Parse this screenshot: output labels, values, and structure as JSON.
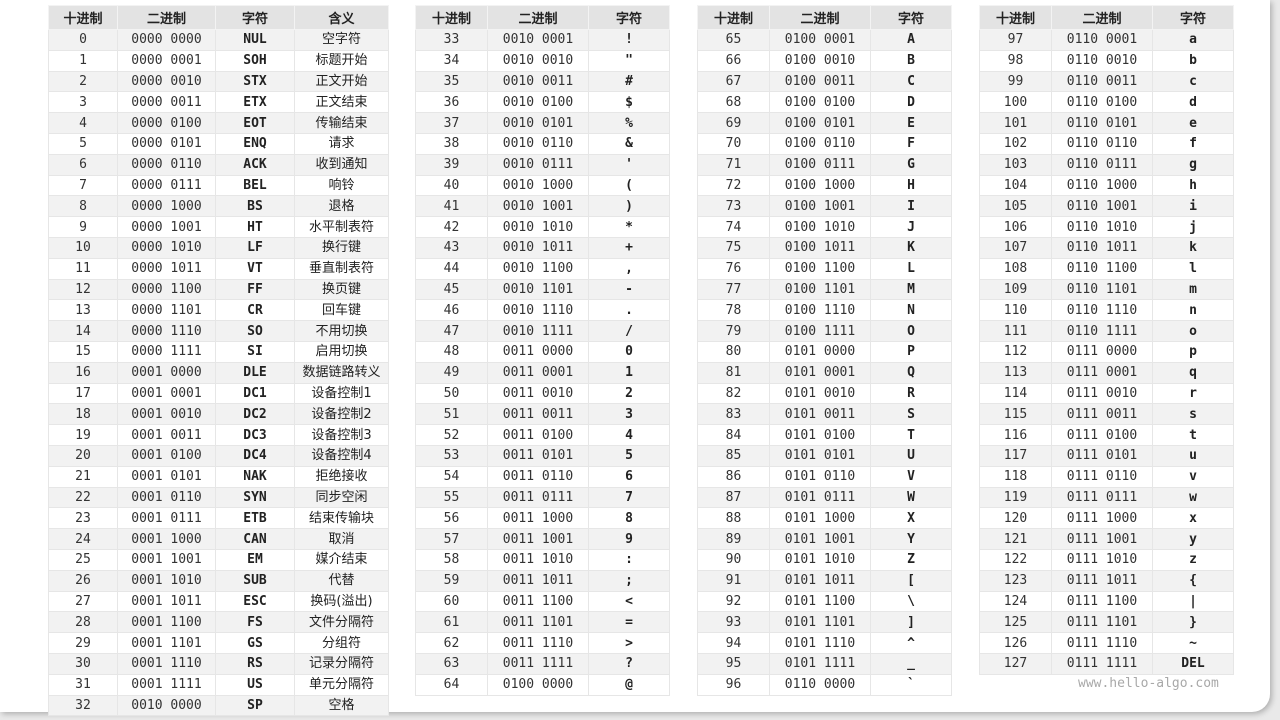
{
  "headers": {
    "dec": "十进制",
    "bin": "二进制",
    "char": "字符",
    "meaning": "含义"
  },
  "watermark": "www.hello-algo.com",
  "tables": [
    {
      "has_meaning": true,
      "rows": [
        [
          "0",
          "0000 0000",
          "NUL",
          "空字符"
        ],
        [
          "1",
          "0000 0001",
          "SOH",
          "标题开始"
        ],
        [
          "2",
          "0000 0010",
          "STX",
          "正文开始"
        ],
        [
          "3",
          "0000 0011",
          "ETX",
          "正文结束"
        ],
        [
          "4",
          "0000 0100",
          "EOT",
          "传输结束"
        ],
        [
          "5",
          "0000 0101",
          "ENQ",
          "请求"
        ],
        [
          "6",
          "0000 0110",
          "ACK",
          "收到通知"
        ],
        [
          "7",
          "0000 0111",
          "BEL",
          "响铃"
        ],
        [
          "8",
          "0000 1000",
          "BS",
          "退格"
        ],
        [
          "9",
          "0000 1001",
          "HT",
          "水平制表符"
        ],
        [
          "10",
          "0000 1010",
          "LF",
          "换行键"
        ],
        [
          "11",
          "0000 1011",
          "VT",
          "垂直制表符"
        ],
        [
          "12",
          "0000 1100",
          "FF",
          "换页键"
        ],
        [
          "13",
          "0000 1101",
          "CR",
          "回车键"
        ],
        [
          "14",
          "0000 1110",
          "SO",
          "不用切换"
        ],
        [
          "15",
          "0000 1111",
          "SI",
          "启用切换"
        ],
        [
          "16",
          "0001 0000",
          "DLE",
          "数据链路转义"
        ],
        [
          "17",
          "0001 0001",
          "DC1",
          "设备控制1"
        ],
        [
          "18",
          "0001 0010",
          "DC2",
          "设备控制2"
        ],
        [
          "19",
          "0001 0011",
          "DC3",
          "设备控制3"
        ],
        [
          "20",
          "0001 0100",
          "DC4",
          "设备控制4"
        ],
        [
          "21",
          "0001 0101",
          "NAK",
          "拒绝接收"
        ],
        [
          "22",
          "0001 0110",
          "SYN",
          "同步空闲"
        ],
        [
          "23",
          "0001 0111",
          "ETB",
          "结束传输块"
        ],
        [
          "24",
          "0001 1000",
          "CAN",
          "取消"
        ],
        [
          "25",
          "0001 1001",
          "EM",
          "媒介结束"
        ],
        [
          "26",
          "0001 1010",
          "SUB",
          "代替"
        ],
        [
          "27",
          "0001 1011",
          "ESC",
          "换码(溢出)"
        ],
        [
          "28",
          "0001 1100",
          "FS",
          "文件分隔符"
        ],
        [
          "29",
          "0001 1101",
          "GS",
          "分组符"
        ],
        [
          "30",
          "0001 1110",
          "RS",
          "记录分隔符"
        ],
        [
          "31",
          "0001 1111",
          "US",
          "单元分隔符"
        ],
        [
          "32",
          "0010 0000",
          "SP",
          "空格"
        ]
      ]
    },
    {
      "has_meaning": false,
      "rows": [
        [
          "33",
          "0010 0001",
          "!"
        ],
        [
          "34",
          "0010 0010",
          "\""
        ],
        [
          "35",
          "0010 0011",
          "#"
        ],
        [
          "36",
          "0010 0100",
          "$"
        ],
        [
          "37",
          "0010 0101",
          "%"
        ],
        [
          "38",
          "0010 0110",
          "&"
        ],
        [
          "39",
          "0010 0111",
          "'"
        ],
        [
          "40",
          "0010 1000",
          "("
        ],
        [
          "41",
          "0010 1001",
          ")"
        ],
        [
          "42",
          "0010 1010",
          "*"
        ],
        [
          "43",
          "0010 1011",
          "+"
        ],
        [
          "44",
          "0010 1100",
          ","
        ],
        [
          "45",
          "0010 1101",
          "-"
        ],
        [
          "46",
          "0010 1110",
          "."
        ],
        [
          "47",
          "0010 1111",
          "/"
        ],
        [
          "48",
          "0011 0000",
          "0"
        ],
        [
          "49",
          "0011 0001",
          "1"
        ],
        [
          "50",
          "0011 0010",
          "2"
        ],
        [
          "51",
          "0011 0011",
          "3"
        ],
        [
          "52",
          "0011 0100",
          "4"
        ],
        [
          "53",
          "0011 0101",
          "5"
        ],
        [
          "54",
          "0011 0110",
          "6"
        ],
        [
          "55",
          "0011 0111",
          "7"
        ],
        [
          "56",
          "0011 1000",
          "8"
        ],
        [
          "57",
          "0011 1001",
          "9"
        ],
        [
          "58",
          "0011 1010",
          ":"
        ],
        [
          "59",
          "0011 1011",
          ";"
        ],
        [
          "60",
          "0011 1100",
          "<"
        ],
        [
          "61",
          "0011 1101",
          "="
        ],
        [
          "62",
          "0011 1110",
          ">"
        ],
        [
          "63",
          "0011 1111",
          "?"
        ],
        [
          "64",
          "0100 0000",
          "@"
        ]
      ]
    },
    {
      "has_meaning": false,
      "rows": [
        [
          "65",
          "0100 0001",
          "A"
        ],
        [
          "66",
          "0100 0010",
          "B"
        ],
        [
          "67",
          "0100 0011",
          "C"
        ],
        [
          "68",
          "0100 0100",
          "D"
        ],
        [
          "69",
          "0100 0101",
          "E"
        ],
        [
          "70",
          "0100 0110",
          "F"
        ],
        [
          "71",
          "0100 0111",
          "G"
        ],
        [
          "72",
          "0100 1000",
          "H"
        ],
        [
          "73",
          "0100 1001",
          "I"
        ],
        [
          "74",
          "0100 1010",
          "J"
        ],
        [
          "75",
          "0100 1011",
          "K"
        ],
        [
          "76",
          "0100 1100",
          "L"
        ],
        [
          "77",
          "0100 1101",
          "M"
        ],
        [
          "78",
          "0100 1110",
          "N"
        ],
        [
          "79",
          "0100 1111",
          "O"
        ],
        [
          "80",
          "0101 0000",
          "P"
        ],
        [
          "81",
          "0101 0001",
          "Q"
        ],
        [
          "82",
          "0101 0010",
          "R"
        ],
        [
          "83",
          "0101 0011",
          "S"
        ],
        [
          "84",
          "0101 0100",
          "T"
        ],
        [
          "85",
          "0101 0101",
          "U"
        ],
        [
          "86",
          "0101 0110",
          "V"
        ],
        [
          "87",
          "0101 0111",
          "W"
        ],
        [
          "88",
          "0101 1000",
          "X"
        ],
        [
          "89",
          "0101 1001",
          "Y"
        ],
        [
          "90",
          "0101 1010",
          "Z"
        ],
        [
          "91",
          "0101 1011",
          "["
        ],
        [
          "92",
          "0101 1100",
          "\\"
        ],
        [
          "93",
          "0101 1101",
          "]"
        ],
        [
          "94",
          "0101 1110",
          "^"
        ],
        [
          "95",
          "0101 1111",
          "_"
        ],
        [
          "96",
          "0110 0000",
          "`"
        ]
      ]
    },
    {
      "has_meaning": false,
      "rows": [
        [
          "97",
          "0110 0001",
          "a"
        ],
        [
          "98",
          "0110 0010",
          "b"
        ],
        [
          "99",
          "0110 0011",
          "c"
        ],
        [
          "100",
          "0110 0100",
          "d"
        ],
        [
          "101",
          "0110 0101",
          "e"
        ],
        [
          "102",
          "0110 0110",
          "f"
        ],
        [
          "103",
          "0110 0111",
          "g"
        ],
        [
          "104",
          "0110 1000",
          "h"
        ],
        [
          "105",
          "0110 1001",
          "i"
        ],
        [
          "106",
          "0110 1010",
          "j"
        ],
        [
          "107",
          "0110 1011",
          "k"
        ],
        [
          "108",
          "0110 1100",
          "l"
        ],
        [
          "109",
          "0110 1101",
          "m"
        ],
        [
          "110",
          "0110 1110",
          "n"
        ],
        [
          "111",
          "0110 1111",
          "o"
        ],
        [
          "112",
          "0111 0000",
          "p"
        ],
        [
          "113",
          "0111 0001",
          "q"
        ],
        [
          "114",
          "0111 0010",
          "r"
        ],
        [
          "115",
          "0111 0011",
          "s"
        ],
        [
          "116",
          "0111 0100",
          "t"
        ],
        [
          "117",
          "0111 0101",
          "u"
        ],
        [
          "118",
          "0111 0110",
          "v"
        ],
        [
          "119",
          "0111 0111",
          "w"
        ],
        [
          "120",
          "0111 1000",
          "x"
        ],
        [
          "121",
          "0111 1001",
          "y"
        ],
        [
          "122",
          "0111 1010",
          "z"
        ],
        [
          "123",
          "0111 1011",
          "{"
        ],
        [
          "124",
          "0111 1100",
          "|"
        ],
        [
          "125",
          "0111 1101",
          "}"
        ],
        [
          "126",
          "0111 1110",
          "~"
        ],
        [
          "127",
          "0111 1111",
          "DEL"
        ]
      ]
    }
  ]
}
